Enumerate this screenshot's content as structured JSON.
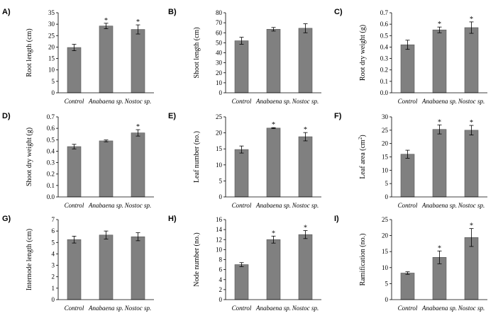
{
  "chart_data": [
    {
      "type": "bar",
      "panel": "A)",
      "ylabel": "Root length (cm)",
      "categories": [
        "Control",
        "Anabaena sp.",
        "Nostoc sp."
      ],
      "values": [
        19.8,
        29.2,
        27.7
      ],
      "errors": [
        1.4,
        1.2,
        2.0
      ],
      "significant": [
        false,
        true,
        true
      ],
      "ylim": [
        0,
        35
      ],
      "yticks": [
        0,
        5,
        10,
        15,
        20,
        25,
        30,
        35
      ]
    },
    {
      "type": "bar",
      "panel": "B)",
      "ylabel": "Shoot length (cm)",
      "categories": [
        "Control",
        "Anabaena sp.",
        "Nostoc sp."
      ],
      "values": [
        52,
        63.5,
        64.5
      ],
      "errors": [
        3.5,
        1.8,
        4.5
      ],
      "significant": [
        false,
        false,
        false
      ],
      "ylim": [
        0,
        80
      ],
      "yticks": [
        0,
        10,
        20,
        30,
        40,
        50,
        60,
        70,
        80
      ]
    },
    {
      "type": "bar",
      "panel": "C)",
      "ylabel": "Root dry weight (g)",
      "categories": [
        "Control",
        "Anabaena sp.",
        "Nostoc sp."
      ],
      "values": [
        0.42,
        0.55,
        0.57
      ],
      "errors": [
        0.04,
        0.025,
        0.05
      ],
      "significant": [
        false,
        true,
        true
      ],
      "ylim": [
        0,
        0.7
      ],
      "yticks": [
        0,
        0.1,
        0.2,
        0.3,
        0.4,
        0.5,
        0.6,
        0.7
      ]
    },
    {
      "type": "bar",
      "panel": "D)",
      "ylabel": "Shoot dry weight (g)",
      "categories": [
        "Control",
        "Anabaena sp.",
        "Nostoc sp."
      ],
      "values": [
        0.44,
        0.49,
        0.56
      ],
      "errors": [
        0.02,
        0.008,
        0.028
      ],
      "significant": [
        false,
        false,
        true
      ],
      "ylim": [
        0,
        0.7
      ],
      "yticks": [
        0,
        0.1,
        0.2,
        0.3,
        0.4,
        0.5,
        0.6,
        0.7
      ]
    },
    {
      "type": "bar",
      "panel": "E)",
      "ylabel": "Leaf number (no.)",
      "categories": [
        "Control",
        "Anabaena sp.",
        "Nostoc sp."
      ],
      "values": [
        14.8,
        21.5,
        18.8
      ],
      "errors": [
        1.1,
        0.15,
        1.3
      ],
      "significant": [
        false,
        true,
        true
      ],
      "ylim": [
        0,
        25
      ],
      "yticks": [
        0,
        5,
        10,
        15,
        20,
        25
      ]
    },
    {
      "type": "bar",
      "panel": "F)",
      "ylabel_parts": [
        "Leaf area (cm",
        "2",
        ")"
      ],
      "categories": [
        "Control",
        "Anabaena sp.",
        "Nostoc sp."
      ],
      "values": [
        16,
        25.3,
        25
      ],
      "errors": [
        1.5,
        1.7,
        1.8
      ],
      "significant": [
        false,
        true,
        true
      ],
      "ylim": [
        0,
        30
      ],
      "yticks": [
        0,
        5,
        10,
        15,
        20,
        25,
        30
      ]
    },
    {
      "type": "bar",
      "panel": "G)",
      "ylabel": "Internode length (cm)",
      "categories": [
        "Control",
        "Anabaena sp.",
        "Nostoc sp."
      ],
      "values": [
        5.25,
        5.65,
        5.5
      ],
      "errors": [
        0.3,
        0.35,
        0.35
      ],
      "significant": [
        false,
        false,
        false
      ],
      "ylim": [
        0,
        7
      ],
      "yticks": [
        0,
        1,
        2,
        3,
        4,
        5,
        6,
        7
      ]
    },
    {
      "type": "bar",
      "panel": "H)",
      "ylabel": "Node number (no.)",
      "categories": [
        "Control",
        "Anabaena sp.",
        "Nostoc sp."
      ],
      "values": [
        7,
        12,
        13
      ],
      "errors": [
        0.4,
        0.7,
        0.8
      ],
      "significant": [
        false,
        true,
        true
      ],
      "ylim": [
        0,
        16
      ],
      "yticks": [
        0,
        2,
        4,
        6,
        8,
        10,
        12,
        14,
        16
      ]
    },
    {
      "type": "bar",
      "panel": "I)",
      "ylabel": "Ramification (no.)",
      "categories": [
        "Control",
        "Anabaena sp.",
        "Nostoc sp."
      ],
      "values": [
        8.3,
        13.2,
        19.4
      ],
      "errors": [
        0.4,
        2.0,
        2.8
      ],
      "significant": [
        false,
        true,
        true
      ],
      "ylim": [
        0,
        25
      ],
      "yticks": [
        0,
        5,
        10,
        15,
        20,
        25
      ]
    }
  ],
  "significance_marker": "*",
  "colors": {
    "bar": "#808080",
    "bar_edge": "#555555",
    "axis": "#000000"
  }
}
